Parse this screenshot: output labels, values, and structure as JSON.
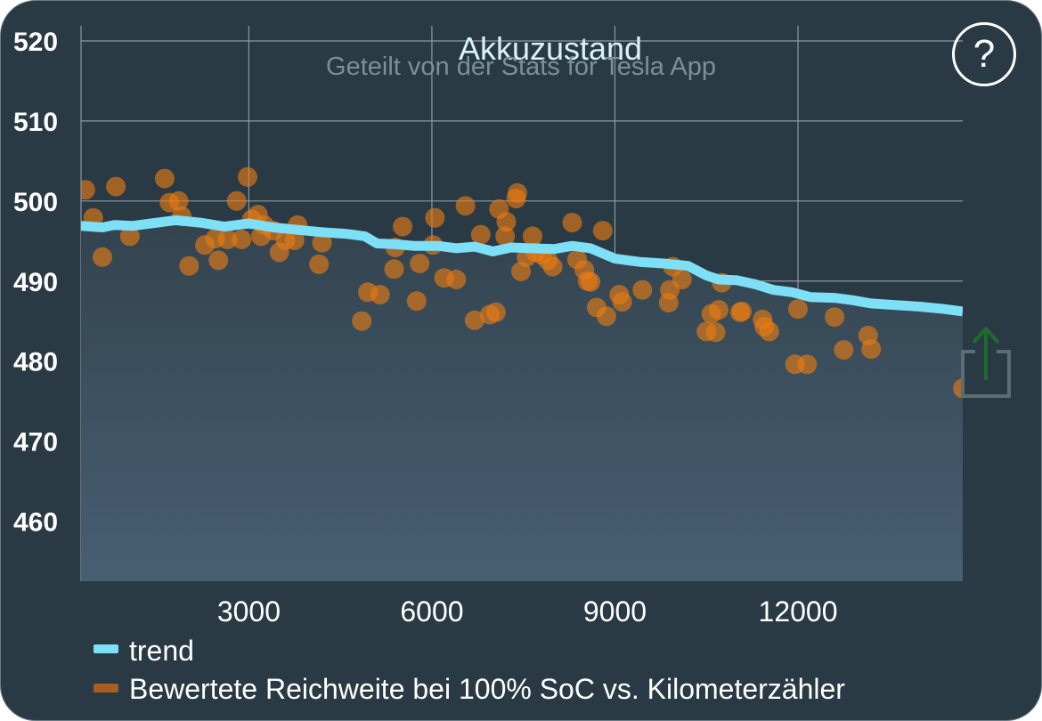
{
  "help_icon": "?",
  "share_icon": "share-icon",
  "colors": {
    "background": "#293a44",
    "trend": "#7ee0f7",
    "points": "#ea7c12",
    "grid": "#8a9aa4",
    "fill_top": "#33434e",
    "fill_bottom": "#475f73",
    "share_arrow": "#1f6b2e"
  },
  "chart_data": {
    "type": "scatter",
    "title": "Akkuzustand",
    "subtitle": "Geteilt von der Stats for Tesla App",
    "xlabel": "",
    "ylabel": "",
    "xlim": [
      250,
      14700
    ],
    "ylim": [
      452.5,
      525
    ],
    "xticks": [
      3000,
      6000,
      9000,
      12000
    ],
    "yticks": [
      460,
      470,
      480,
      490,
      500,
      510,
      520
    ],
    "x_tick_labels": [
      "3000",
      "6000",
      "9000",
      "12000"
    ],
    "y_tick_labels": [
      "460",
      "470",
      "480",
      "490",
      "500",
      "510",
      "520"
    ],
    "grid": true,
    "legend_position": "bottom",
    "legend": [
      "trend",
      "Bewertete Reichweite bei 100% SoC vs. Kilometerzähler"
    ],
    "series": [
      {
        "name": "trend",
        "type": "line",
        "points": [
          [
            250,
            496.9
          ],
          [
            600,
            496.7
          ],
          [
            800,
            497.0
          ],
          [
            1100,
            496.9
          ],
          [
            1400,
            497.2
          ],
          [
            1800,
            497.6
          ],
          [
            2200,
            497.3
          ],
          [
            2600,
            496.8
          ],
          [
            3000,
            497.2
          ],
          [
            3400,
            496.7
          ],
          [
            3800,
            496.4
          ],
          [
            4200,
            496.1
          ],
          [
            4600,
            495.9
          ],
          [
            4900,
            495.6
          ],
          [
            5100,
            494.7
          ],
          [
            5400,
            494.6
          ],
          [
            5700,
            494.4
          ],
          [
            6100,
            494.4
          ],
          [
            6400,
            494.1
          ],
          [
            6700,
            494.3
          ],
          [
            7000,
            493.7
          ],
          [
            7300,
            494.2
          ],
          [
            7600,
            494.1
          ],
          [
            8000,
            494.0
          ],
          [
            8300,
            494.4
          ],
          [
            8600,
            494.1
          ],
          [
            9000,
            492.8
          ],
          [
            9400,
            492.4
          ],
          [
            9800,
            492.2
          ],
          [
            10200,
            491.9
          ],
          [
            10500,
            490.7
          ],
          [
            10700,
            490.2
          ],
          [
            11000,
            490.1
          ],
          [
            11300,
            489.6
          ],
          [
            11600,
            488.9
          ],
          [
            11900,
            488.6
          ],
          [
            12200,
            488.0
          ],
          [
            12600,
            487.9
          ],
          [
            12900,
            487.6
          ],
          [
            13200,
            487.2
          ],
          [
            13600,
            487.0
          ],
          [
            14000,
            486.8
          ],
          [
            14400,
            486.5
          ],
          [
            14700,
            486.2
          ]
        ]
      },
      {
        "name": "Bewertete Reichweite bei 100% SoC vs. Kilometerzähler",
        "type": "scatter",
        "points": [
          [
            320,
            501.4
          ],
          [
            450,
            497.9
          ],
          [
            600,
            493.0
          ],
          [
            820,
            501.8
          ],
          [
            1050,
            495.6
          ],
          [
            1620,
            502.8
          ],
          [
            1700,
            499.8
          ],
          [
            1850,
            500.0
          ],
          [
            1900,
            498.1
          ],
          [
            2020,
            491.9
          ],
          [
            2280,
            494.5
          ],
          [
            2450,
            495.3
          ],
          [
            2500,
            492.6
          ],
          [
            2650,
            495.2
          ],
          [
            2800,
            500.0
          ],
          [
            2880,
            495.2
          ],
          [
            2980,
            503.0
          ],
          [
            3050,
            497.7
          ],
          [
            3150,
            498.3
          ],
          [
            3200,
            495.6
          ],
          [
            3250,
            497.0
          ],
          [
            3400,
            496.3
          ],
          [
            3500,
            493.6
          ],
          [
            3600,
            495.1
          ],
          [
            3750,
            495.1
          ],
          [
            3800,
            497.0
          ],
          [
            4150,
            492.1
          ],
          [
            4200,
            494.8
          ],
          [
            4850,
            485.0
          ],
          [
            4950,
            488.6
          ],
          [
            5150,
            488.3
          ],
          [
            5380,
            491.5
          ],
          [
            5400,
            494.2
          ],
          [
            5520,
            496.8
          ],
          [
            5750,
            487.5
          ],
          [
            5800,
            492.2
          ],
          [
            6020,
            494.5
          ],
          [
            6050,
            497.9
          ],
          [
            6200,
            490.4
          ],
          [
            6400,
            490.2
          ],
          [
            6550,
            499.4
          ],
          [
            6700,
            485.1
          ],
          [
            6800,
            495.8
          ],
          [
            6950,
            485.8
          ],
          [
            7050,
            486.1
          ],
          [
            7100,
            499.0
          ],
          [
            7200,
            495.6
          ],
          [
            7220,
            497.4
          ],
          [
            7380,
            500.3
          ],
          [
            7400,
            501.0
          ],
          [
            7460,
            491.2
          ],
          [
            7550,
            493.0
          ],
          [
            7650,
            495.6
          ],
          [
            7700,
            493.6
          ],
          [
            7800,
            493.3
          ],
          [
            7900,
            492.6
          ],
          [
            7980,
            491.8
          ],
          [
            8300,
            497.3
          ],
          [
            8380,
            492.7
          ],
          [
            8500,
            491.4
          ],
          [
            8550,
            490.0
          ],
          [
            8600,
            489.9
          ],
          [
            8700,
            486.7
          ],
          [
            8800,
            496.3
          ],
          [
            8860,
            485.6
          ],
          [
            9070,
            488.3
          ],
          [
            9120,
            487.4
          ],
          [
            9450,
            488.9
          ],
          [
            9880,
            487.3
          ],
          [
            9900,
            488.9
          ],
          [
            9950,
            491.8
          ],
          [
            10100,
            490.2
          ],
          [
            10500,
            483.7
          ],
          [
            10580,
            485.9
          ],
          [
            10650,
            483.6
          ],
          [
            10700,
            486.4
          ],
          [
            10750,
            489.8
          ],
          [
            11050,
            486.1
          ],
          [
            11080,
            486.2
          ],
          [
            11420,
            485.2
          ],
          [
            11450,
            484.3
          ],
          [
            11530,
            483.7
          ],
          [
            11950,
            479.6
          ],
          [
            12000,
            486.5
          ],
          [
            12150,
            479.6
          ],
          [
            12600,
            485.5
          ],
          [
            12750,
            481.4
          ],
          [
            13150,
            483.2
          ],
          [
            13200,
            481.5
          ],
          [
            14700,
            476.6
          ]
        ]
      }
    ]
  }
}
